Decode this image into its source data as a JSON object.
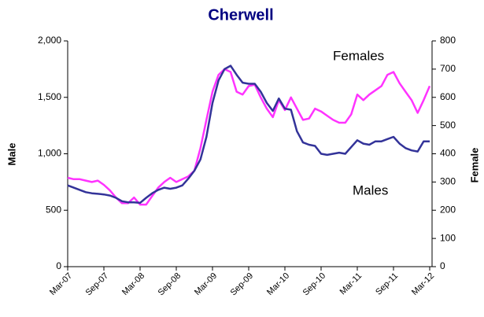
{
  "chart_data": {
    "type": "line",
    "title": "Cherwell",
    "y_label": "Male",
    "y2_label": "Female",
    "annotations": [
      "Females",
      "Males"
    ],
    "categories": [
      "Mar-07",
      null,
      null,
      null,
      null,
      null,
      "Sep-07",
      null,
      null,
      null,
      null,
      null,
      "Mar-08",
      null,
      null,
      null,
      null,
      null,
      "Sep-08",
      null,
      null,
      null,
      null,
      null,
      "Mar-09",
      null,
      null,
      null,
      null,
      null,
      "Sep-09",
      null,
      null,
      null,
      null,
      null,
      "Mar-10",
      null,
      null,
      null,
      null,
      null,
      "Sep-10",
      null,
      null,
      null,
      null,
      null,
      "Mar-11",
      null,
      null,
      null,
      null,
      null,
      "Sep-11",
      null,
      null,
      null,
      null,
      null,
      "Mar-12"
    ],
    "series": [
      {
        "name": "Males",
        "color": "#333399",
        "axis": "y",
        "values": [
          720,
          700,
          680,
          660,
          650,
          645,
          640,
          630,
          610,
          580,
          570,
          570,
          565,
          610,
          650,
          680,
          700,
          690,
          700,
          720,
          780,
          850,
          950,
          1150,
          1450,
          1650,
          1750,
          1780,
          1700,
          1630,
          1620,
          1620,
          1550,
          1450,
          1380,
          1490,
          1400,
          1390,
          1200,
          1100,
          1080,
          1070,
          1000,
          990,
          1000,
          1010,
          1000,
          1060,
          1120,
          1090,
          1080,
          1110,
          1110,
          1130,
          1150,
          1090,
          1050,
          1030,
          1020,
          1110,
          1110
        ]
      },
      {
        "name": "Females",
        "color": "#ff33ff",
        "axis": "y2",
        "values": [
          315,
          310,
          310,
          305,
          300,
          305,
          290,
          270,
          245,
          225,
          225,
          245,
          220,
          220,
          250,
          280,
          300,
          315,
          300,
          310,
          320,
          340,
          420,
          520,
          620,
          680,
          700,
          690,
          620,
          610,
          640,
          645,
          600,
          560,
          530,
          590,
          555,
          600,
          560,
          520,
          525,
          560,
          550,
          535,
          520,
          510,
          510,
          540,
          610,
          590,
          610,
          625,
          640,
          680,
          690,
          650,
          620,
          590,
          545,
          590,
          640
        ]
      }
    ],
    "ylim": [
      0,
      2000
    ],
    "yticks": [
      0,
      500,
      {
        "value": 1000,
        "label": "1,000"
      },
      {
        "value": 1500,
        "label": "1,500"
      },
      {
        "value": 2000,
        "label": "2,000"
      }
    ],
    "y2lim": [
      0,
      800
    ],
    "y2ticks": [
      0,
      100,
      200,
      300,
      400,
      500,
      600,
      700,
      800
    ],
    "grid": false
  }
}
